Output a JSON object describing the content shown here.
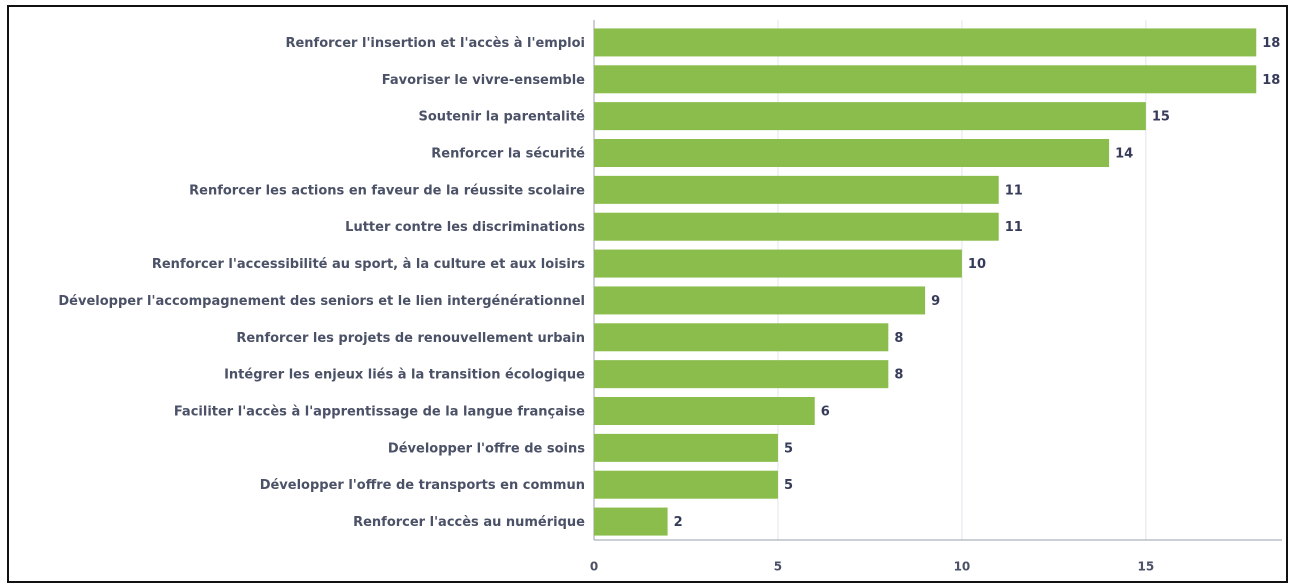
{
  "chart_data": {
    "type": "bar",
    "orientation": "horizontal",
    "categories": [
      "Renforcer l'insertion et l'accès à l'emploi",
      "Favoriser le vivre-ensemble",
      "Soutenir la parentalité",
      "Renforcer la sécurité",
      "Renforcer les actions en faveur de la réussite scolaire",
      "Lutter contre les discriminations",
      "Renforcer l'accessibilité au sport, à la culture et aux loisirs",
      "Développer l'accompagnement des seniors et le lien intergénérationnel",
      "Renforcer les projets de renouvellement urbain",
      "Intégrer les enjeux liés à la transition écologique",
      "Faciliter l'accès à l'apprentissage de la langue française",
      "Développer l'offre de soins",
      "Développer l'offre de transports en commun",
      "Renforcer l'accès au numérique"
    ],
    "values": [
      18,
      18,
      15,
      14,
      11,
      11,
      10,
      9,
      8,
      8,
      6,
      5,
      5,
      2
    ],
    "color": "#8abd4c",
    "xlim": [
      0,
      18.7
    ],
    "xticks": [
      0,
      5,
      10,
      15
    ],
    "grid": true
  }
}
